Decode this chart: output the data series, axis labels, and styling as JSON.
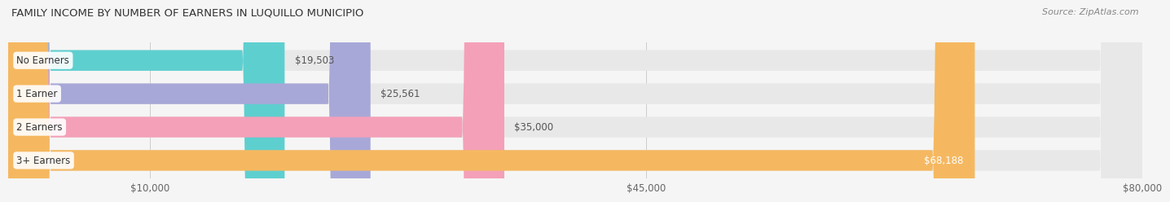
{
  "title": "FAMILY INCOME BY NUMBER OF EARNERS IN LUQUILLO MUNICIPIO",
  "source": "Source: ZipAtlas.com",
  "categories": [
    "No Earners",
    "1 Earner",
    "2 Earners",
    "3+ Earners"
  ],
  "values": [
    19503,
    25561,
    35000,
    68188
  ],
  "bar_colors": [
    "#5ecfcf",
    "#a8a8d8",
    "#f4a0b8",
    "#f5b860"
  ],
  "bar_bg_color": "#e8e8e8",
  "fig_bg_color": "#f5f5f5",
  "x_max": 80000,
  "x_ticks": [
    10000,
    45000,
    80000
  ],
  "x_tick_labels": [
    "$10,000",
    "$45,000",
    "$80,000"
  ],
  "value_labels": [
    "$19,503",
    "$25,561",
    "$35,000",
    "$68,188"
  ]
}
